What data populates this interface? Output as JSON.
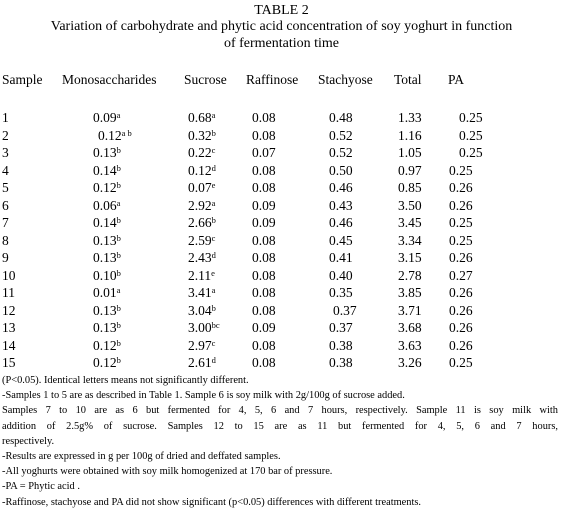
{
  "title": {
    "line1": "TABLE 2",
    "line2": "Variation of carbohydrate and phytic acid concentration of soy yoghurt in function",
    "line3": "of fermentation time"
  },
  "table": {
    "headers": [
      "Sample",
      "Monosaccharides",
      "Sucrose",
      "Raffinose",
      "Stachyose",
      "Total",
      "PA"
    ],
    "rows": [
      {
        "sample": "1",
        "mono": "0.09",
        "mono_sup": "a",
        "sucrose": "0.68",
        "sucrose_sup": "a",
        "raffinose": "0.08",
        "stachyose": "0.48",
        "total": "1.33",
        "pa": "0.25"
      },
      {
        "sample": "2",
        "mono": "0.12",
        "mono_sup": "a b",
        "sucrose": "0.32",
        "sucrose_sup": "b",
        "raffinose": "0.08",
        "stachyose": "0.52",
        "total": "1.16",
        "pa": "0.25"
      },
      {
        "sample": "3",
        "mono": "0.13",
        "mono_sup": "b",
        "sucrose": "0.22",
        "sucrose_sup": "c",
        "raffinose": "0.07",
        "stachyose": "0.52",
        "total": "1.05",
        "pa": "0.25"
      },
      {
        "sample": "4",
        "mono": "0.14",
        "mono_sup": "b",
        "sucrose": "0.12",
        "sucrose_sup": "d",
        "raffinose": "0.08",
        "stachyose": "0.50",
        "total": "0.97",
        "pa": "0.25"
      },
      {
        "sample": "5",
        "mono": "0.12",
        "mono_sup": "b",
        "sucrose": "0.07",
        "sucrose_sup": "e",
        "raffinose": "0.08",
        "stachyose": "0.46",
        "total": "0.85",
        "pa": "0.26"
      },
      {
        "sample": "6",
        "mono": "0.06",
        "mono_sup": "a",
        "sucrose": "2.92",
        "sucrose_sup": "a",
        "raffinose": "0.09",
        "stachyose": "0.43",
        "total": "3.50",
        "pa": "0.26"
      },
      {
        "sample": "7",
        "mono": "0.14",
        "mono_sup": "b",
        "sucrose": "2.66",
        "sucrose_sup": "b",
        "raffinose": "0.09",
        "stachyose": "0.46",
        "total": "3.45",
        "pa": "0.25"
      },
      {
        "sample": "8",
        "mono": "0.13",
        "mono_sup": "b",
        "sucrose": "2.59",
        "sucrose_sup": "c",
        "raffinose": "0.08",
        "stachyose": "0.45",
        "total": "3.34",
        "pa": "0.25"
      },
      {
        "sample": "9",
        "mono": "0.13",
        "mono_sup": "b",
        "sucrose": "2.43",
        "sucrose_sup": "d",
        "raffinose": "0.08",
        "stachyose": "0.41",
        "total": "3.15",
        "pa": "0.26"
      },
      {
        "sample": "10",
        "mono": "0.10",
        "mono_sup": "b",
        "sucrose": "2.11",
        "sucrose_sup": "e",
        "raffinose": "0.08",
        "stachyose": "0.40",
        "total": "2.78",
        "pa": "0.27"
      },
      {
        "sample": "11",
        "mono": "0.01",
        "mono_sup": "a",
        "sucrose": "3.41",
        "sucrose_sup": "a",
        "raffinose": "0.08",
        "stachyose": "0.35",
        "total": "3.85",
        "pa": "0.26"
      },
      {
        "sample": "12",
        "mono": "0.13",
        "mono_sup": "b",
        "sucrose": "3.04",
        "sucrose_sup": "b",
        "raffinose": "0.08",
        "stachyose": "0.37",
        "total": "3.71",
        "pa": "0.26"
      },
      {
        "sample": "13",
        "mono": "0.13",
        "mono_sup": "b",
        "sucrose": "3.00",
        "sucrose_sup": "bc",
        "raffinose": "0.09",
        "stachyose": "0.37",
        "total": "3.68",
        "pa": "0.26"
      },
      {
        "sample": "14",
        "mono": "0.12",
        "mono_sup": "b",
        "sucrose": "2.97",
        "sucrose_sup": "c",
        "raffinose": "0.08",
        "stachyose": "0.38",
        "total": "3.63",
        "pa": "0.26"
      },
      {
        "sample": "15",
        "mono": "0.12",
        "mono_sup": "b",
        "sucrose": "2.61",
        "sucrose_sup": "d",
        "raffinose": "0.08",
        "stachyose": "0.38",
        "total": "3.26",
        "pa": "0.25"
      }
    ]
  },
  "notes": [
    "(P<0.05). Identical letters means not significantly different.",
    "-Samples 1 to 5 are as described in Table 1. Sample 6 is soy milk with 2g/100g of sucrose added.",
    "Samples 7 to 10 are as 6 but fermented for 4, 5, 6 and 7 hours, respectively. Sample 11 is soy milk with",
    "addition of 2.5g% of sucrose. Samples 12 to 15 are as 11 but fermented for 4, 5, 6 and 7 hours,",
    "respectively.",
    "-Results are expressed in g per 100g of dried and deffated samples.",
    "-All yoghurts were obtained with soy milk homogenized at 170 bar of pressure.",
    "-PA = Phytic acid .",
    "-Raffinose, stachyose and PA did not show significant (p<0.05) differences with different treatments."
  ]
}
